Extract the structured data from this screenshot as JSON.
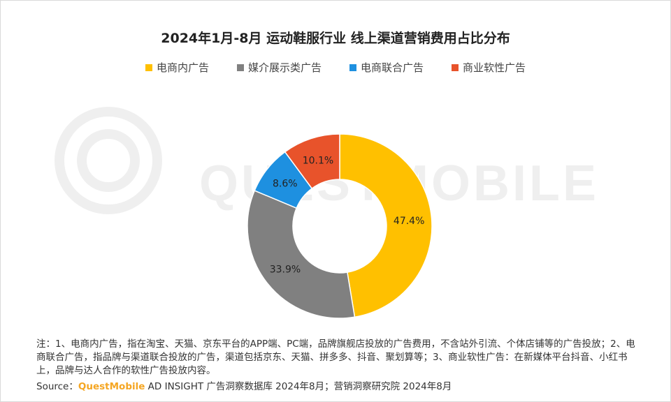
{
  "chart_data": {
    "type": "pie",
    "title": "2024年1月-8月 运动鞋服行业 线上渠道营销费用占比分布",
    "legend_position": "top",
    "slices": [
      {
        "label": "电商内广告",
        "value": 47.4,
        "display": "47.4%",
        "color": "#FFC000"
      },
      {
        "label": "媒介展示类广告",
        "value": 33.9,
        "display": "33.9%",
        "color": "#808080"
      },
      {
        "label": "电商联合广告",
        "value": 8.6,
        "display": "8.6%",
        "color": "#1E90E0"
      },
      {
        "label": "商业软性广告",
        "value": 10.1,
        "display": "10.1%",
        "color": "#E8532B"
      }
    ]
  },
  "notes": {
    "text": "注：1、电商内广告，指在淘宝、天猫、京东平台的APP端、PC端，品牌旗舰店投放的广告费用，不含站外引流、个体店铺等的广告投放；2、电商联合广告，指品牌与渠道联合投放的广告，渠道包括京东、天猫、拼多多、抖音、聚划算等；3、商业软性广告：在新媒体平台抖音、小红书上，品牌与达人合作的软性广告投放内容。"
  },
  "source": {
    "prefix": "Source：",
    "brand": "QuestMobile",
    "suffix": " AD INSIGHT 广告洞察数据库 2024年8月；营销洞察研究院 2024年8月"
  },
  "watermark": {
    "text": "QUESTMOBILE"
  }
}
